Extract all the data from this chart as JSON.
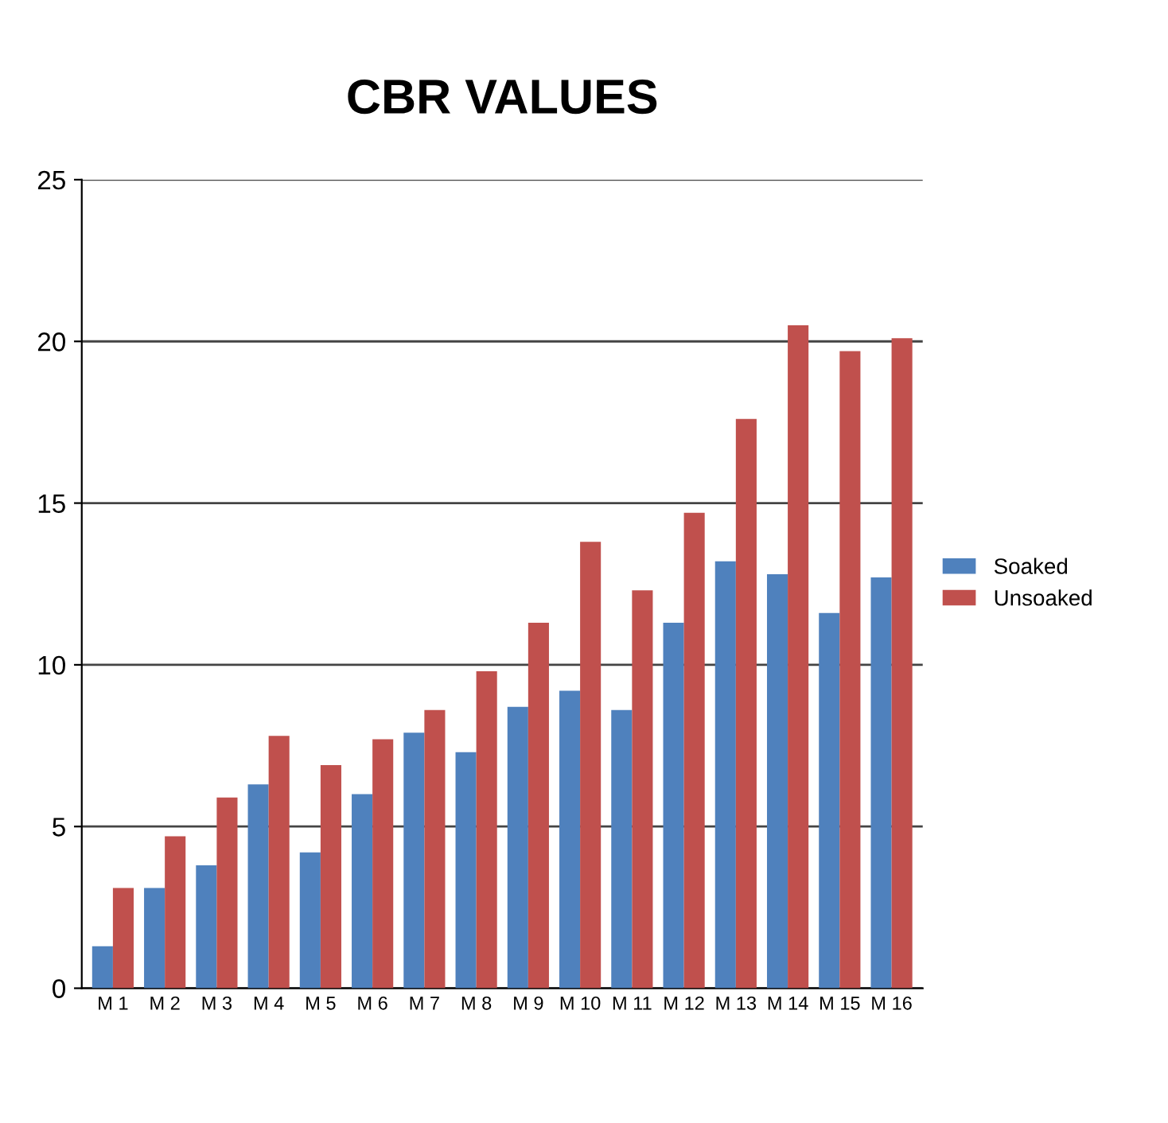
{
  "chart_data": {
    "type": "bar",
    "title": "CBR VALUES",
    "categories": [
      "M 1",
      "M 2",
      "M 3",
      "M 4",
      "M 5",
      "M 6",
      "M 7",
      "M 8",
      "M 9",
      "M 10",
      "M 11",
      "M 12",
      "M 13",
      "M 14",
      "M 15",
      "M 16"
    ],
    "series": [
      {
        "name": "Soaked",
        "color": "#4f81bd",
        "values": [
          1.3,
          3.1,
          3.8,
          6.3,
          4.2,
          6.0,
          7.9,
          7.3,
          8.7,
          9.2,
          8.6,
          11.3,
          13.2,
          12.8,
          11.6,
          12.7
        ]
      },
      {
        "name": "Unsoaked",
        "color": "#c0504d",
        "values": [
          3.1,
          4.7,
          5.9,
          7.8,
          6.9,
          7.7,
          8.6,
          9.8,
          11.3,
          13.8,
          12.3,
          14.7,
          17.6,
          20.5,
          19.7,
          20.1
        ]
      }
    ],
    "ylim": [
      0,
      25
    ],
    "yticks": [
      0,
      5,
      10,
      15,
      20,
      25
    ],
    "grid": "y",
    "legend": "right"
  }
}
